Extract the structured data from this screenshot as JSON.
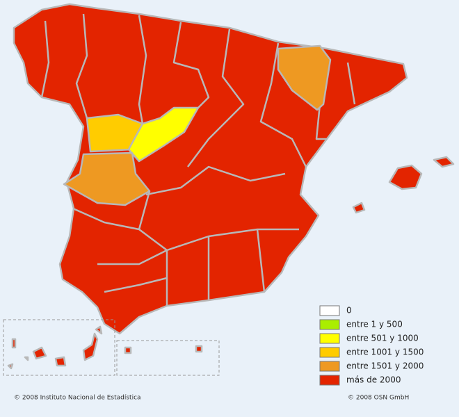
{
  "legend": {
    "items": [
      {
        "label": "0",
        "color": "#ffffff"
      },
      {
        "label": "entre 1 y 500",
        "color": "#aaee00"
      },
      {
        "label": "entre 501 y 1000",
        "color": "#ffff00"
      },
      {
        "label": "entre 1001 y 1500",
        "color": "#ffcc00"
      },
      {
        "label": "entre 1501 y 2000",
        "color": "#ee9922"
      },
      {
        "label": "más de 2000",
        "color": "#e32400"
      }
    ]
  },
  "credits": {
    "left": "© 2008 Instituto Nacional de Estadística",
    "right": "© 2008 OSN GmbH"
  }
}
